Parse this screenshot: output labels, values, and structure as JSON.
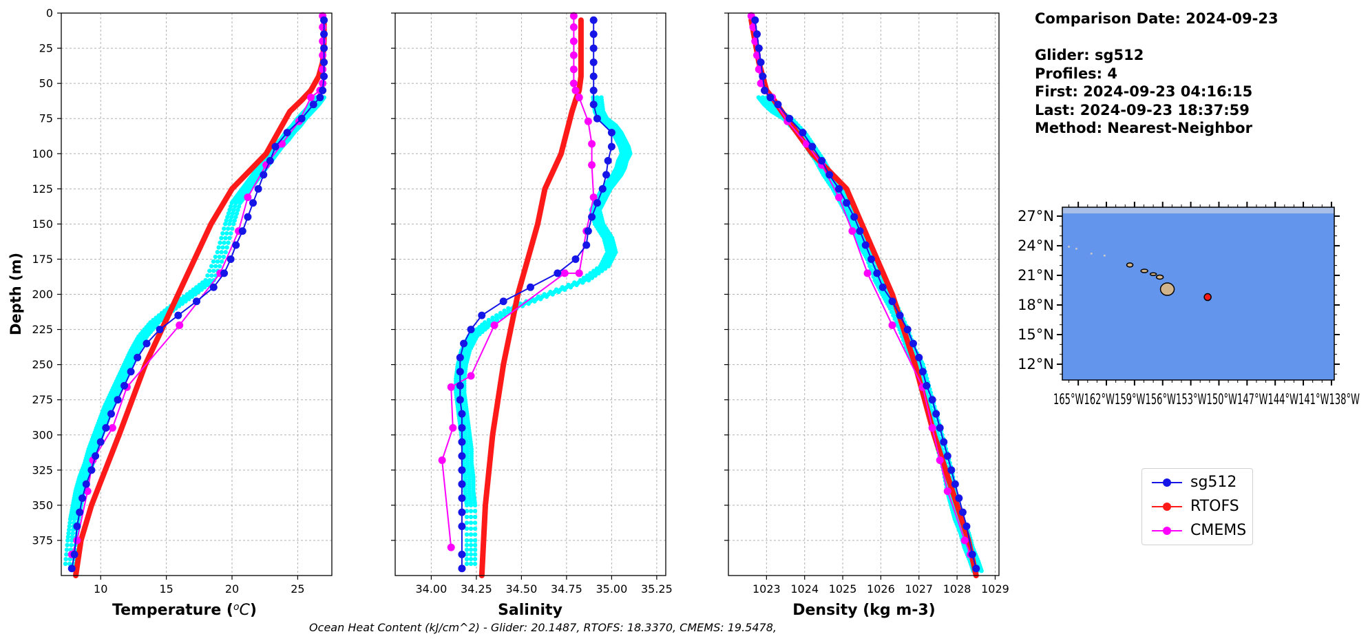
{
  "info": {
    "comparison_date": "Comparison Date: 2024-09-23",
    "glider": "Glider: sg512",
    "profiles": "Profiles: 4",
    "first": "First: 2024-09-23 04:16:15",
    "last": "Last: 2024-09-23 18:37:59",
    "method": "Method: Nearest-Neighbor"
  },
  "footer": "Ocean Heat Content (kJ/cm^2) - Glider: 20.1487,  RTOFS: 18.3370,  CMEMS: 19.5478,",
  "legend": [
    {
      "label": "sg512",
      "color": "#1515e8"
    },
    {
      "label": "RTOFS",
      "color": "#ff1a1a"
    },
    {
      "label": "CMEMS",
      "color": "#ff00ff"
    }
  ],
  "colors": {
    "glider_raw": "#00ffff",
    "sg512": "#1515e8",
    "rtofs": "#ff1a1a",
    "cmems": "#ff00ff",
    "ocean": "#6495ed",
    "land": "#d2b48c"
  },
  "chart_data": [
    {
      "type": "line",
      "panel": "temperature",
      "xlabel": "Temperature (°C)",
      "ylabel": "Depth (m)",
      "xlim": [
        7.0,
        27.6
      ],
      "ylim": [
        400,
        0
      ],
      "xticks": [
        10,
        15,
        20,
        25
      ],
      "yticks": [
        0,
        25,
        50,
        75,
        100,
        125,
        150,
        175,
        200,
        225,
        250,
        275,
        300,
        325,
        350,
        375
      ],
      "grid": true,
      "series": [
        {
          "name": "sg512",
          "x": [
            27.0,
            27.0,
            27.0,
            27.0,
            27.0,
            26.9,
            26.7,
            26.2,
            25.3,
            24.2,
            23.3,
            22.9,
            22.4,
            22.0,
            21.6,
            21.2,
            20.8,
            20.3,
            19.9,
            19.4,
            18.6,
            17.3,
            15.9,
            14.5,
            13.5,
            12.8,
            12.3,
            11.8,
            11.3,
            10.8,
            10.4,
            10.0,
            9.6,
            9.3,
            8.9,
            8.6,
            8.4,
            8.2,
            8.0,
            7.8
          ],
          "y": [
            5,
            15,
            25,
            35,
            45,
            55,
            60,
            65,
            75,
            85,
            95,
            105,
            115,
            125,
            135,
            145,
            155,
            165,
            175,
            185,
            195,
            205,
            215,
            225,
            235,
            245,
            255,
            265,
            275,
            285,
            295,
            305,
            315,
            325,
            335,
            345,
            355,
            365,
            385,
            395
          ]
        },
        {
          "name": "RTOFS",
          "x": [
            27.0,
            27.0,
            26.9,
            26.6,
            26.0,
            25.3,
            24.4,
            22.6,
            20.0,
            18.4,
            15.9,
            13.4,
            11.4,
            9.3,
            8.5,
            8.1
          ],
          "y": [
            5,
            20,
            35,
            45,
            55,
            62,
            70,
            100,
            125,
            150,
            200,
            250,
            300,
            350,
            375,
            400
          ]
        },
        {
          "name": "CMEMS",
          "x": [
            26.9,
            26.9,
            26.9,
            26.9,
            26.9,
            26.9,
            26.7,
            26.0,
            25.1,
            23.8,
            22.6,
            21.2,
            20.5,
            19.1,
            16.0,
            12.0,
            10.9,
            9.4,
            9.0,
            8.2,
            7.8
          ],
          "y": [
            2,
            10,
            20,
            30,
            40,
            50,
            55,
            60,
            77,
            93,
            108,
            131,
            155,
            185,
            222,
            266,
            295,
            318,
            340,
            375,
            385
          ]
        },
        {
          "name": "glider_raw",
          "x": [
            26.7,
            26.3,
            25.8,
            25.3,
            24.9,
            24.4,
            24.0,
            23.5,
            23.1,
            22.7,
            22.3,
            21.9,
            21.5,
            21.1,
            20.7,
            20.3,
            19.8,
            19.2,
            18.3,
            16.9,
            15.4,
            14.1,
            13.2,
            12.6,
            12.1,
            11.6,
            11.1,
            10.6,
            10.2,
            9.8,
            9.4,
            9.1,
            8.7,
            8.4,
            8.2,
            8.0,
            7.8,
            7.6
          ],
          "y": [
            60,
            65,
            70,
            75,
            80,
            85,
            90,
            95,
            100,
            105,
            110,
            115,
            120,
            125,
            130,
            135,
            150,
            170,
            190,
            200,
            210,
            220,
            230,
            240,
            250,
            260,
            270,
            280,
            290,
            300,
            310,
            320,
            330,
            340,
            350,
            360,
            375,
            395
          ]
        }
      ]
    },
    {
      "type": "line",
      "panel": "salinity",
      "xlabel": "Salinity",
      "ylim": [
        400,
        0
      ],
      "xlim": [
        33.8,
        35.3
      ],
      "xticks": [
        34.0,
        34.25,
        34.5,
        34.75,
        35.0,
        35.25
      ],
      "tick_labels": [
        "34.00",
        "34.25",
        "34.50",
        "34.75",
        "35.00",
        "35.25"
      ],
      "grid": true,
      "series": [
        {
          "name": "sg512",
          "x": [
            34.9,
            34.9,
            34.9,
            34.9,
            34.9,
            34.9,
            34.9,
            34.92,
            35.0,
            35.0,
            34.98,
            34.97,
            34.95,
            34.92,
            34.89,
            34.87,
            34.86,
            34.8,
            34.7,
            34.55,
            34.4,
            34.28,
            34.22,
            34.18,
            34.16,
            34.16,
            34.16,
            34.16,
            34.17,
            34.17,
            34.17,
            34.17,
            34.17,
            34.17,
            34.17,
            34.17,
            34.17,
            34.17,
            34.17
          ],
          "y": [
            5,
            15,
            25,
            35,
            45,
            55,
            65,
            75,
            85,
            95,
            105,
            115,
            125,
            135,
            145,
            155,
            165,
            175,
            185,
            195,
            205,
            215,
            225,
            235,
            245,
            255,
            265,
            275,
            285,
            295,
            305,
            315,
            325,
            335,
            345,
            355,
            365,
            385,
            395
          ]
        },
        {
          "name": "RTOFS",
          "x": [
            34.83,
            34.83,
            34.83,
            34.83,
            34.82,
            34.8,
            34.78,
            34.72,
            34.63,
            34.59,
            34.48,
            34.4,
            34.34,
            34.3,
            34.29,
            34.28
          ],
          "y": [
            5,
            20,
            35,
            45,
            55,
            62,
            70,
            100,
            125,
            150,
            200,
            250,
            300,
            350,
            375,
            400
          ]
        },
        {
          "name": "CMEMS",
          "x": [
            34.79,
            34.79,
            34.79,
            34.79,
            34.79,
            34.79,
            34.8,
            34.82,
            34.87,
            34.89,
            34.89,
            34.9,
            34.86,
            34.82,
            34.74,
            34.35,
            34.22,
            34.11,
            34.12,
            34.06,
            34.11
          ],
          "y": [
            2,
            10,
            20,
            30,
            40,
            50,
            55,
            60,
            77,
            93,
            108,
            131,
            155,
            185,
            185,
            222,
            258,
            266,
            295,
            318,
            380
          ]
        },
        {
          "name": "glider_raw",
          "x": [
            34.92,
            34.93,
            34.95,
            35.0,
            35.03,
            35.05,
            35.07,
            35.08,
            35.06,
            35.05,
            35.03,
            35.0,
            34.97,
            34.95,
            34.93,
            34.91,
            34.93,
            34.98,
            35.0,
            34.96,
            34.85,
            34.65,
            34.45,
            34.32,
            34.23,
            34.19,
            34.17,
            34.16,
            34.16,
            34.17,
            34.18,
            34.19,
            34.2,
            34.2,
            34.21,
            34.21,
            34.22,
            34.22,
            34.22
          ],
          "y": [
            60,
            70,
            75,
            80,
            85,
            90,
            95,
            100,
            105,
            110,
            115,
            120,
            125,
            130,
            135,
            140,
            150,
            160,
            170,
            180,
            190,
            200,
            210,
            220,
            230,
            240,
            250,
            260,
            270,
            280,
            290,
            300,
            310,
            320,
            330,
            340,
            350,
            375,
            395
          ]
        }
      ]
    },
    {
      "type": "line",
      "panel": "density",
      "xlabel": "Density (kg m-3)",
      "ylim": [
        400,
        0
      ],
      "xlim": [
        1022.0,
        1029.1
      ],
      "xticks": [
        1023,
        1024,
        1025,
        1026,
        1027,
        1028,
        1029
      ],
      "grid": true,
      "series": [
        {
          "name": "sg512",
          "x": [
            1022.7,
            1022.75,
            1022.8,
            1022.85,
            1022.9,
            1022.95,
            1023.1,
            1023.3,
            1023.6,
            1023.95,
            1024.2,
            1024.45,
            1024.65,
            1024.9,
            1025.1,
            1025.3,
            1025.45,
            1025.6,
            1025.75,
            1025.9,
            1026.05,
            1026.3,
            1026.5,
            1026.7,
            1026.85,
            1027.0,
            1027.1,
            1027.2,
            1027.35,
            1027.45,
            1027.55,
            1027.65,
            1027.75,
            1027.85,
            1027.95,
            1028.05,
            1028.15,
            1028.25,
            1028.4,
            1028.5
          ],
          "y": [
            5,
            15,
            25,
            35,
            45,
            55,
            60,
            65,
            75,
            85,
            95,
            105,
            115,
            125,
            135,
            145,
            155,
            165,
            175,
            185,
            195,
            205,
            215,
            225,
            235,
            245,
            255,
            265,
            275,
            285,
            295,
            305,
            315,
            325,
            335,
            345,
            355,
            365,
            385,
            395
          ]
        },
        {
          "name": "RTOFS",
          "x": [
            1022.6,
            1022.7,
            1022.8,
            1022.9,
            1023.0,
            1023.2,
            1023.4,
            1024.2,
            1025.1,
            1025.5,
            1026.3,
            1026.9,
            1027.4,
            1028.0,
            1028.3,
            1028.5
          ],
          "y": [
            5,
            20,
            35,
            45,
            55,
            62,
            70,
            100,
            125,
            150,
            200,
            250,
            300,
            350,
            375,
            400
          ]
        },
        {
          "name": "CMEMS",
          "x": [
            1022.6,
            1022.65,
            1022.7,
            1022.75,
            1022.8,
            1022.85,
            1022.95,
            1023.15,
            1023.55,
            1024.05,
            1024.45,
            1024.9,
            1025.25,
            1025.65,
            1026.3,
            1027.1,
            1027.35,
            1027.55,
            1027.75,
            1028.2,
            1028.35
          ],
          "y": [
            2,
            10,
            20,
            30,
            40,
            50,
            55,
            60,
            77,
            93,
            108,
            131,
            155,
            185,
            222,
            266,
            295,
            318,
            340,
            375,
            385
          ]
        },
        {
          "name": "glider_raw",
          "x": [
            1022.9,
            1023.05,
            1023.25,
            1023.55,
            1023.9,
            1024.15,
            1024.4,
            1024.6,
            1024.85,
            1025.05,
            1025.25,
            1025.4,
            1025.55,
            1025.75,
            1025.95,
            1026.15,
            1026.35,
            1026.6,
            1026.8,
            1027.0,
            1027.15,
            1027.3,
            1027.45,
            1027.6,
            1027.75,
            1027.85,
            1027.95,
            1028.05,
            1028.2,
            1028.3,
            1028.45,
            1028.55
          ],
          "y": [
            60,
            65,
            70,
            75,
            85,
            95,
            105,
            115,
            125,
            135,
            145,
            155,
            165,
            175,
            190,
            200,
            210,
            225,
            240,
            250,
            265,
            280,
            295,
            310,
            325,
            340,
            350,
            360,
            370,
            380,
            390,
            398
          ]
        }
      ]
    },
    {
      "type": "map",
      "panel": "location",
      "lat_ticks": [
        "27°N",
        "24°N",
        "21°N",
        "18°N",
        "15°N",
        "12°N"
      ],
      "lon_ticks_text": "165°W162°W159°W156°W153°W150°W147°W144°W141°W138°W",
      "marker": {
        "lat": 18.8,
        "lon": -151.2,
        "color": "#ff1a1a"
      }
    }
  ]
}
